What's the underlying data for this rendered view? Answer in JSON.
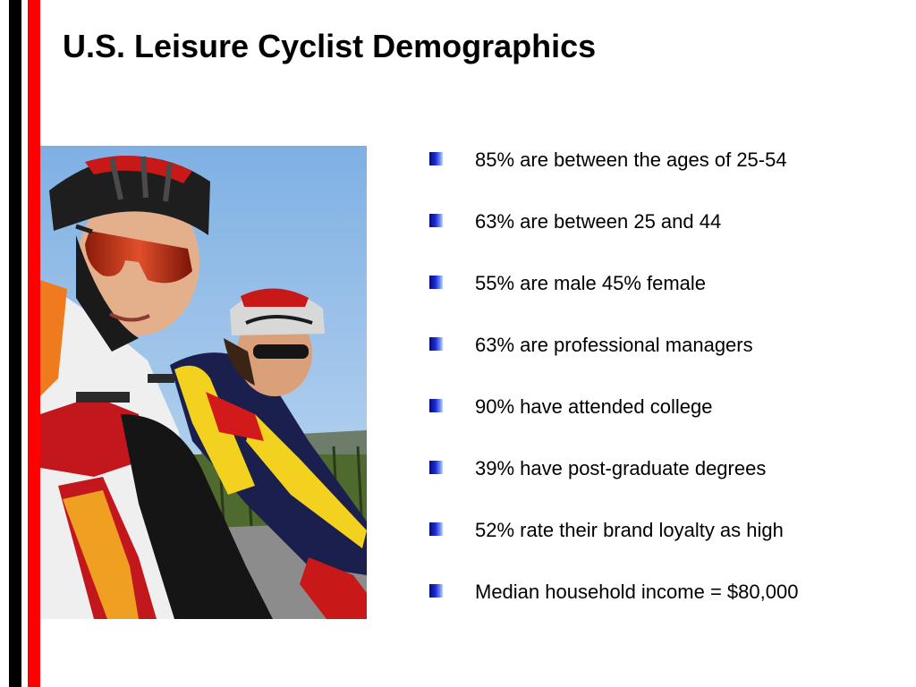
{
  "slide": {
    "title": "U.S. Leisure Cyclist Demographics",
    "bullets": [
      "85% are between the ages of 25-54",
      "63% are between 25 and 44",
      "55% are male 45% female",
      "63% are professional managers",
      "90% have attended college",
      "39% have post-graduate degrees",
      "52% rate their brand loyalty as high",
      "Median household income = $80,000"
    ]
  },
  "photo": {
    "subject": "two cyclists in helmets and sunglasses riding road bikes"
  },
  "colors": {
    "accent_red": "#ff0000",
    "accent_black": "#000000",
    "bullet_blue": "#1a2cd6"
  }
}
